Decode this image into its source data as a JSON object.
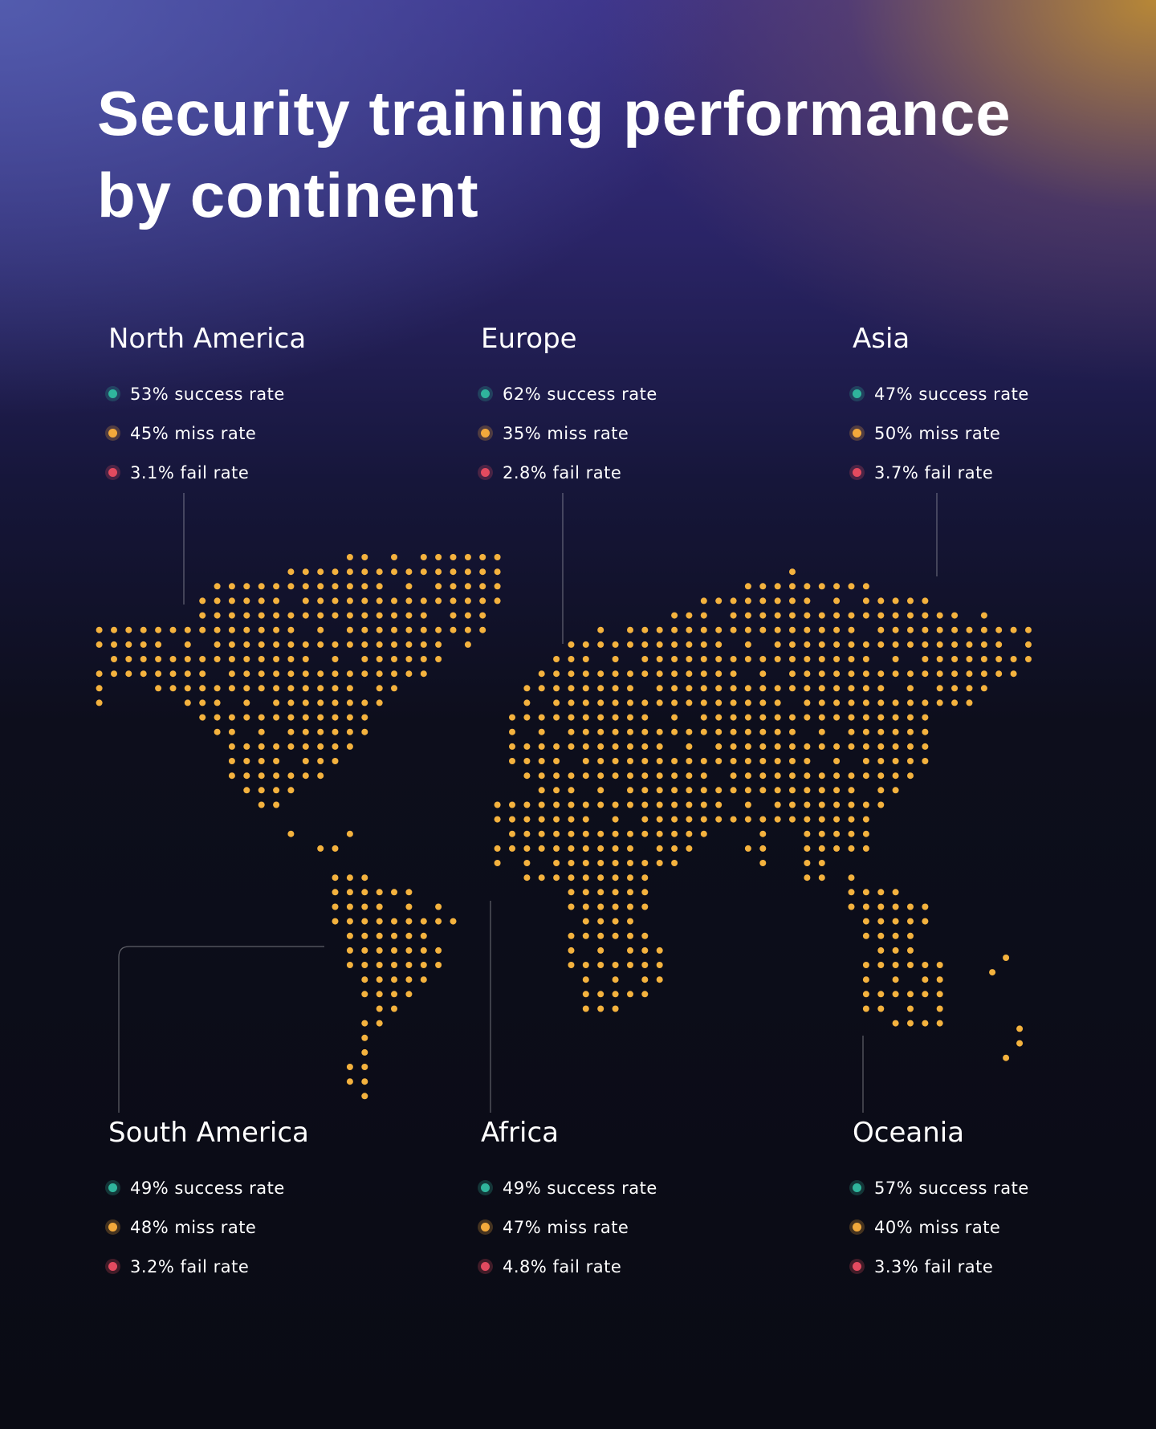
{
  "title": "Security training performance by continent",
  "regions": [
    {
      "name": "North America",
      "stats": [
        "53% success rate",
        "45% miss rate",
        "3.1% fail rate"
      ]
    },
    {
      "name": "Europe",
      "stats": [
        "62% success rate",
        "35% miss rate",
        "2.8% fail rate"
      ]
    },
    {
      "name": "Asia",
      "stats": [
        "47% success rate",
        "50% miss rate",
        "3.7% fail rate"
      ]
    },
    {
      "name": "South America",
      "stats": [
        "49% success rate",
        "48% miss rate",
        "3.2% fail rate"
      ]
    },
    {
      "name": "Africa",
      "stats": [
        "49% success rate",
        "47% miss rate",
        "4.8% fail rate"
      ]
    },
    {
      "name": "Oceania",
      "stats": [
        "57% success rate",
        "40% miss rate",
        "3.3% fail rate"
      ]
    }
  ]
}
